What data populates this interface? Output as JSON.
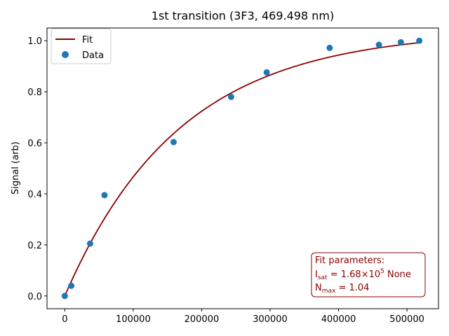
{
  "chart_data": {
    "type": "scatter",
    "title": "1st transition (3F3, 469.498 nm)",
    "xlabel": "",
    "ylabel": "Signal (arb)",
    "xlim": [
      -26000,
      546000
    ],
    "ylim": [
      -0.05,
      1.05
    ],
    "xticks": [
      0,
      100000,
      200000,
      300000,
      400000,
      500000
    ],
    "xtick_labels": [
      "0",
      "100000",
      "200000",
      "300000",
      "400000",
      "500000"
    ],
    "yticks": [
      0.0,
      0.2,
      0.4,
      0.6,
      0.8,
      1.0
    ],
    "ytick_labels": [
      "0.0",
      "0.2",
      "0.4",
      "0.6",
      "0.8",
      "1.0"
    ],
    "grid": false,
    "legend_position": "top-left",
    "series": [
      {
        "name": "Fit",
        "kind": "line",
        "color": "#8b0000",
        "model": "N_max * (1 - exp(-x / I_sat))",
        "params": {
          "I_sat": 168000,
          "N_max": 1.04
        },
        "x_range": [
          0,
          520000
        ]
      },
      {
        "name": "Data",
        "kind": "scatter",
        "color": "#1f77b4",
        "x": [
          0,
          9500,
          37000,
          58000,
          159000,
          243000,
          295000,
          387000,
          459000,
          491000,
          518000
        ],
        "y": [
          0.0,
          0.04,
          0.205,
          0.395,
          0.603,
          0.78,
          0.876,
          0.972,
          0.984,
          0.994,
          1.0
        ]
      }
    ],
    "annotation": {
      "header": "Fit parameters:",
      "isat_main": "I",
      "isat_sub": "sat",
      "isat_eq": " = 1.68",
      "isat_times": "×10",
      "isat_exp": "5",
      "isat_unit": " None",
      "nmax_main": "N",
      "nmax_sub": "max",
      "nmax_eq": " = 1.04",
      "color": "#8b0000"
    }
  }
}
